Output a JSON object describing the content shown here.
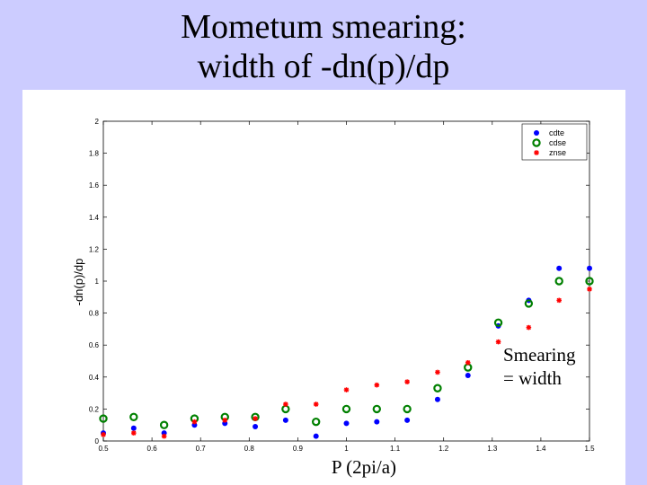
{
  "slide": {
    "title_line1": "Mometum smearing:",
    "title_line2": "width of -dn(p)/dp",
    "annotation_line1": "Smearing",
    "annotation_line2": "= width",
    "xlabel": "P (2pi/a)"
  },
  "colors": {
    "background": "#ccccff",
    "cdte": "#0000ff",
    "cdse": "#008000",
    "znse": "#ff0000"
  },
  "chart_data": {
    "type": "scatter",
    "title": "",
    "xlabel": "P (2pi/a)",
    "ylabel": "-dn(p)/dp",
    "xlim": [
      0.5,
      1.5
    ],
    "ylim": [
      0,
      2
    ],
    "x_ticks": [
      "0.5",
      "0.6",
      "0.7",
      "0.8",
      "0.9",
      "1",
      "1.1",
      "1.2",
      "1.3",
      "1.4",
      "1.5"
    ],
    "y_ticks": [
      "0",
      "0.2",
      "0.4",
      "0.6",
      "0.8",
      "1",
      "1.2",
      "1.4",
      "1.6",
      "1.8",
      "2"
    ],
    "legend_position": "top-right",
    "x": [
      0.5,
      0.5625,
      0.625,
      0.6875,
      0.75,
      0.8125,
      0.875,
      0.9375,
      1.0,
      1.0625,
      1.125,
      1.1875,
      1.25,
      1.3125,
      1.375,
      1.4375,
      1.5
    ],
    "series": [
      {
        "name": "cdte",
        "marker": "dot",
        "values": [
          0.05,
          0.08,
          0.05,
          0.1,
          0.11,
          0.09,
          0.13,
          0.03,
          0.11,
          0.12,
          0.13,
          0.26,
          0.41,
          0.72,
          0.88,
          1.08,
          1.08
        ]
      },
      {
        "name": "cdse",
        "marker": "circle",
        "values": [
          0.14,
          0.15,
          0.1,
          0.14,
          0.15,
          0.15,
          0.2,
          0.12,
          0.2,
          0.2,
          0.2,
          0.33,
          0.46,
          0.74,
          0.86,
          1.0,
          1.0
        ]
      },
      {
        "name": "znse",
        "marker": "star",
        "values": [
          0.04,
          0.05,
          0.03,
          0.12,
          0.13,
          0.14,
          0.23,
          0.23,
          0.32,
          0.35,
          0.37,
          0.43,
          0.49,
          0.62,
          0.71,
          0.88,
          0.95
        ]
      }
    ]
  }
}
